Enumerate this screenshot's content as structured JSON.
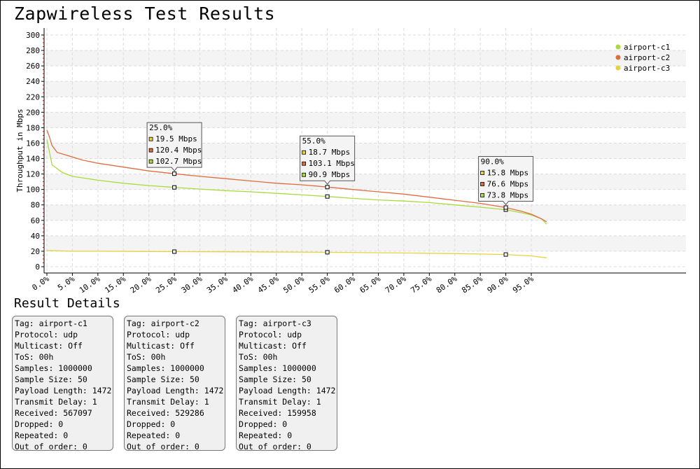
{
  "page": {
    "title": "Zapwireless Test Results"
  },
  "chart_data": {
    "type": "line",
    "title": "",
    "xlabel": "",
    "ylabel": "Throughput in Mbps",
    "xlim": [
      0,
      100
    ],
    "ylim": [
      0,
      300
    ],
    "y_ticks": [
      0,
      20,
      40,
      60,
      80,
      100,
      120,
      140,
      160,
      180,
      200,
      220,
      240,
      260,
      280,
      300
    ],
    "x_ticks": [
      "0.0%",
      "5.0%",
      "10.0%",
      "15.0%",
      "20.0%",
      "25.0%",
      "30.0%",
      "35.0%",
      "40.0%",
      "45.0%",
      "50.0%",
      "55.0%",
      "60.0%",
      "65.0%",
      "70.0%",
      "75.0%",
      "80.0%",
      "85.0%",
      "90.0%",
      "95.0%"
    ],
    "x_tick_values": [
      0,
      5,
      10,
      15,
      20,
      25,
      30,
      35,
      40,
      45,
      50,
      55,
      60,
      65,
      70,
      75,
      80,
      85,
      90,
      95
    ],
    "grid": true,
    "legend_position": "top-right",
    "series": [
      {
        "name": "airport-c1",
        "color": "#a8dc3c",
        "x": [
          0,
          1,
          2,
          3,
          5,
          7,
          10,
          15,
          20,
          25,
          30,
          35,
          40,
          45,
          50,
          55,
          60,
          65,
          70,
          75,
          80,
          85,
          90,
          93,
          95,
          97,
          98
        ],
        "y": [
          165,
          132,
          127,
          122,
          117,
          115,
          112,
          108,
          105,
          102.7,
          100.5,
          98.5,
          97,
          95,
          93,
          90.9,
          88.5,
          86.5,
          85,
          83,
          80,
          77,
          73.8,
          70,
          67,
          62,
          55
        ]
      },
      {
        "name": "airport-c2",
        "color": "#e06c40",
        "x": [
          0,
          0.5,
          1,
          2,
          3,
          5,
          7,
          10,
          15,
          20,
          25,
          30,
          35,
          40,
          45,
          50,
          55,
          60,
          65,
          70,
          75,
          80,
          85,
          90,
          93,
          95,
          97,
          98
        ],
        "y": [
          177,
          168,
          157,
          148,
          146,
          142,
          138,
          134,
          129,
          124,
          120.4,
          117,
          114,
          111,
          108,
          106,
          103.1,
          100,
          97,
          94,
          90,
          86,
          82,
          76.6,
          72,
          68,
          62,
          58
        ]
      },
      {
        "name": "airport-c3",
        "color": "#e6d23c",
        "x": [
          0,
          5,
          10,
          20,
          25,
          40,
          55,
          70,
          80,
          90,
          95,
          98
        ],
        "y": [
          21,
          20,
          20,
          19.7,
          19.5,
          19.2,
          18.7,
          17.8,
          17,
          15.8,
          14,
          11.5
        ]
      }
    ],
    "tooltips": [
      {
        "x": 25,
        "label": "25.0%",
        "values": [
          "19.5 Mbps",
          "120.4 Mbps",
          "102.7 Mbps"
        ]
      },
      {
        "x": 55,
        "label": "55.0%",
        "values": [
          "18.7 Mbps",
          "103.1 Mbps",
          "90.9 Mbps"
        ]
      },
      {
        "x": 90,
        "label": "90.0%",
        "values": [
          "15.8 Mbps",
          "76.6 Mbps",
          "73.8 Mbps"
        ]
      }
    ]
  },
  "details": {
    "title": "Result Details",
    "cards": [
      {
        "tag": "Tag: airport-c1",
        "protocol": "Protocol: udp",
        "multicast": "Multicast: Off",
        "tos": "ToS: 00h",
        "samples": "Samples: 1000000",
        "sample_size": "Sample Size: 50",
        "payload": "Payload Length: 1472",
        "delay": "Transmit Delay: 1",
        "received": "Received: 567097",
        "dropped": "Dropped: 0",
        "repeated": "Repeated: 0",
        "out_of_order": "Out of order: 0"
      },
      {
        "tag": "Tag: airport-c2",
        "protocol": "Protocol: udp",
        "multicast": "Multicast: Off",
        "tos": "ToS: 00h",
        "samples": "Samples: 1000000",
        "sample_size": "Sample Size: 50",
        "payload": "Payload Length: 1472",
        "delay": "Transmit Delay: 1",
        "received": "Received: 529286",
        "dropped": "Dropped: 0",
        "repeated": "Repeated: 0",
        "out_of_order": "Out of order: 0"
      },
      {
        "tag": "Tag: airport-c3",
        "protocol": "Protocol: udp",
        "multicast": "Multicast: Off",
        "tos": "ToS: 00h",
        "samples": "Samples: 1000000",
        "sample_size": "Sample Size: 50",
        "payload": "Payload Length: 1472",
        "delay": "Transmit Delay: 1",
        "received": "Received: 159958",
        "dropped": "Dropped: 0",
        "repeated": "Repeated: 0",
        "out_of_order": "Out of order: 0"
      }
    ]
  }
}
